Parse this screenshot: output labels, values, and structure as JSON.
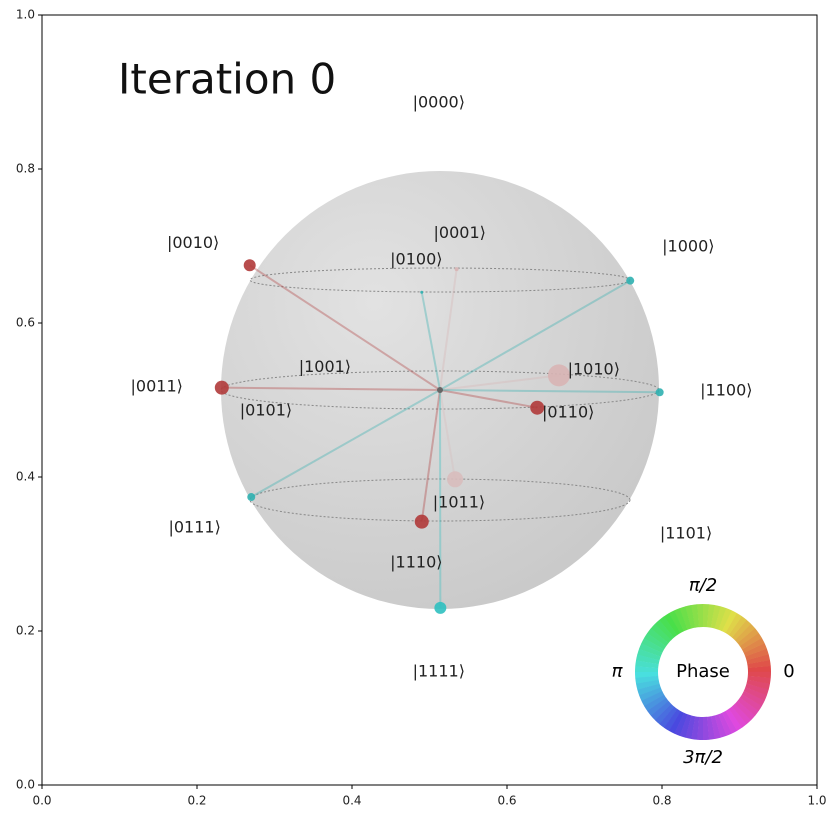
{
  "chart_data": {
    "type": "qsphere",
    "title": "Iteration 0",
    "xlim": [
      0,
      1
    ],
    "ylim": [
      0,
      1
    ],
    "xticks": [
      {
        "value": 0,
        "label": "0.0"
      },
      {
        "value": 0.2,
        "label": "0.2"
      },
      {
        "value": 0.4,
        "label": "0.4"
      },
      {
        "value": 0.6,
        "label": "0.6"
      },
      {
        "value": 0.8,
        "label": "0.8"
      },
      {
        "value": 1,
        "label": "1.0"
      }
    ],
    "yticks": [
      {
        "value": 0,
        "label": "0.0"
      },
      {
        "value": 0.2,
        "label": "0.2"
      },
      {
        "value": 0.4,
        "label": "0.4"
      },
      {
        "value": 0.6,
        "label": "0.6"
      },
      {
        "value": 0.8,
        "label": "0.8"
      },
      {
        "value": 1,
        "label": "1.0"
      }
    ],
    "annotations": [
      {
        "text": "|0000⟩",
        "x": 0.512,
        "y": 0.886
      },
      {
        "text": "|0001⟩",
        "x": 0.539,
        "y": 0.716
      },
      {
        "text": "|0010⟩",
        "x": 0.195,
        "y": 0.703
      },
      {
        "text": "|0100⟩",
        "x": 0.483,
        "y": 0.682
      },
      {
        "text": "|1000⟩",
        "x": 0.834,
        "y": 0.699
      },
      {
        "text": "|1001⟩",
        "x": 0.365,
        "y": 0.542
      },
      {
        "text": "|1010⟩",
        "x": 0.712,
        "y": 0.539
      },
      {
        "text": "|0011⟩",
        "x": 0.148,
        "y": 0.517
      },
      {
        "text": "|1100⟩",
        "x": 0.883,
        "y": 0.512
      },
      {
        "text": "|0101⟩",
        "x": 0.289,
        "y": 0.486
      },
      {
        "text": "|0110⟩",
        "x": 0.679,
        "y": 0.483
      },
      {
        "text": "|1011⟩",
        "x": 0.538,
        "y": 0.366
      },
      {
        "text": "|0111⟩",
        "x": 0.197,
        "y": 0.334
      },
      {
        "text": "|1101⟩",
        "x": 0.831,
        "y": 0.326
      },
      {
        "text": "|1110⟩",
        "x": 0.483,
        "y": 0.288
      },
      {
        "text": "|1111⟩",
        "x": 0.512,
        "y": 0.147
      }
    ],
    "points": {
      "x": [
        0.268,
        0.232,
        0.639,
        0.667,
        0.533,
        0.49,
        0.514,
        0.27,
        0.759,
        0.797,
        0.535,
        0.49
      ],
      "y": [
        0.675,
        0.516,
        0.49,
        0.532,
        0.397,
        0.342,
        0.23,
        0.374,
        0.655,
        0.51,
        0.67,
        0.64
      ],
      "sizes": [
        6,
        7,
        7,
        11,
        8,
        7,
        6,
        4,
        4,
        4,
        2,
        1.5
      ],
      "colors": [
        "#b03a3a",
        "#b03a3a",
        "#b03a3a",
        "#d8b4b4",
        "#d8bcbc",
        "#b03a3a",
        "#2fc0c0",
        "#2fb0b0",
        "#2fb0b0",
        "#2fb0b0",
        "#d8b4b4",
        "#2fb0b0"
      ]
    },
    "phase_legend": {
      "title": "Phase",
      "labels": [
        "0",
        "π/2",
        "π",
        "3π/2"
      ]
    }
  }
}
